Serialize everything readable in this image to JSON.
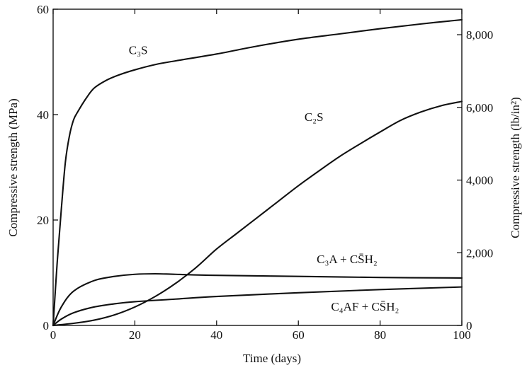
{
  "chart_data": {
    "type": "line",
    "xlabel": "Time (days)",
    "ylabel": "Compressive strength (MPa)",
    "ylabel_right": "Compressive strength (lb/in²)",
    "xlim": [
      0,
      100
    ],
    "ylim": [
      0,
      60
    ],
    "ylim_right": [
      0,
      8702
    ],
    "x_ticks": [
      0,
      20,
      40,
      60,
      80,
      100
    ],
    "y_ticks": [
      0,
      20,
      40,
      60
    ],
    "y_ticks_right": [
      0,
      2000,
      4000,
      6000,
      8000
    ],
    "x_tick_labels": [
      "0",
      "20",
      "40",
      "60",
      "80",
      "100"
    ],
    "y_tick_labels": [
      "0",
      "20",
      "40",
      "60"
    ],
    "y_tick_labels_right": [
      "0",
      "2,000",
      "4,000",
      "6,000",
      "8,000"
    ],
    "grid": false,
    "series": [
      {
        "name": "C₃S",
        "x": [
          0,
          1,
          2,
          3,
          4,
          5,
          6,
          8,
          10,
          13,
          16,
          20,
          25,
          30,
          40,
          50,
          60,
          70,
          80,
          90,
          100
        ],
        "y": [
          0,
          12,
          22,
          31,
          36,
          39,
          40.5,
          43,
          45,
          46.5,
          47.5,
          48.5,
          49.5,
          50.2,
          51.5,
          53,
          54.3,
          55.3,
          56.3,
          57.2,
          58
        ]
      },
      {
        "name": "C₂S",
        "x": [
          0,
          5,
          10,
          15,
          20,
          25,
          30,
          35,
          40,
          45,
          50,
          55,
          60,
          65,
          70,
          75,
          80,
          85,
          90,
          95,
          100
        ],
        "y": [
          0,
          0.4,
          1,
          2,
          3.5,
          5.5,
          8,
          11,
          14.5,
          17.5,
          20.5,
          23.5,
          26.5,
          29.3,
          32,
          34.4,
          36.7,
          38.9,
          40.5,
          41.7,
          42.5
        ]
      },
      {
        "name": "C₃A + CS̄H₂",
        "x": [
          0,
          2,
          5,
          10,
          15,
          20,
          25,
          30,
          40,
          60,
          80,
          100
        ],
        "y": [
          0,
          3.5,
          6.5,
          8.5,
          9.3,
          9.7,
          9.8,
          9.7,
          9.5,
          9.3,
          9.1,
          9.0
        ]
      },
      {
        "name": "C₄AF + CS̄H₂",
        "x": [
          0,
          2,
          5,
          10,
          15,
          20,
          30,
          40,
          60,
          80,
          100
        ],
        "y": [
          0,
          1.2,
          2.4,
          3.5,
          4.1,
          4.5,
          5.0,
          5.5,
          6.2,
          6.8,
          7.3
        ]
      }
    ],
    "annotations": [
      {
        "text": "C₃S",
        "x": 29,
        "y": 51
      },
      {
        "text": "C₂S",
        "x": 98,
        "y": 39
      },
      {
        "text": "C₃A + CS̄H₂",
        "x": 160,
        "y": 12.8
      },
      {
        "text": "C₄AF + CS̄H₂",
        "x": 206,
        "y": 3.4
      }
    ]
  }
}
